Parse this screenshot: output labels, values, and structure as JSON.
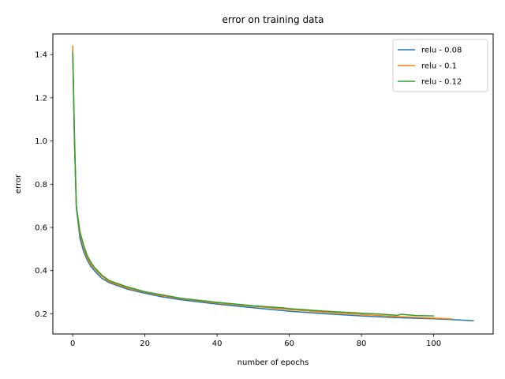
{
  "chart_data": {
    "type": "line",
    "title": "error on training data",
    "xlabel": "number of epochs",
    "ylabel": "error",
    "xlim": [
      -5.5,
      116.5
    ],
    "ylim": [
      0.1065,
      1.4955
    ],
    "xticks": [
      0,
      20,
      40,
      60,
      80,
      100
    ],
    "yticks": [
      0.2,
      0.4,
      0.6,
      0.8,
      1.0,
      1.2,
      1.4
    ],
    "ytick_labels": [
      "0.2",
      "0.4",
      "0.6",
      "0.8",
      "1.0",
      "1.2",
      "1.4"
    ],
    "grid": false,
    "legend": {
      "placement": "top-right"
    },
    "series": [
      {
        "name": "relu - 0.08",
        "color": "#1f77b4",
        "x": [
          0,
          0.5,
          1,
          1.5,
          2,
          3,
          4,
          5,
          6,
          8,
          10,
          15,
          20,
          25,
          30,
          40,
          50,
          60,
          70,
          80,
          90,
          100,
          105,
          111
        ],
        "y": [
          1.42,
          0.98,
          0.69,
          0.62,
          0.55,
          0.49,
          0.45,
          0.42,
          0.4,
          0.365,
          0.345,
          0.315,
          0.295,
          0.278,
          0.265,
          0.245,
          0.228,
          0.212,
          0.2,
          0.19,
          0.182,
          0.177,
          0.173,
          0.168
        ]
      },
      {
        "name": "relu - 0.1",
        "color": "#ff7f0e",
        "x": [
          0,
          0.5,
          1,
          1.5,
          2,
          3,
          4,
          5,
          6,
          8,
          10,
          15,
          20,
          25,
          30,
          40,
          50,
          60,
          70,
          80,
          90,
          100,
          105
        ],
        "y": [
          1.44,
          1.0,
          0.7,
          0.63,
          0.57,
          0.51,
          0.46,
          0.43,
          0.41,
          0.375,
          0.35,
          0.32,
          0.3,
          0.283,
          0.27,
          0.25,
          0.235,
          0.22,
          0.207,
          0.197,
          0.187,
          0.18,
          0.176
        ]
      },
      {
        "name": "relu - 0.12",
        "color": "#2ca02c",
        "x": [
          0,
          0.5,
          1,
          1.5,
          2,
          3,
          4,
          5,
          6,
          8,
          10,
          15,
          20,
          25,
          30,
          40,
          50,
          58,
          60,
          70,
          80,
          85,
          90,
          91,
          95,
          100
        ],
        "y": [
          1.41,
          1.02,
          0.7,
          0.64,
          0.58,
          0.52,
          0.47,
          0.44,
          0.415,
          0.38,
          0.355,
          0.325,
          0.302,
          0.287,
          0.272,
          0.253,
          0.237,
          0.228,
          0.224,
          0.212,
          0.203,
          0.199,
          0.193,
          0.198,
          0.192,
          0.19
        ]
      }
    ]
  }
}
